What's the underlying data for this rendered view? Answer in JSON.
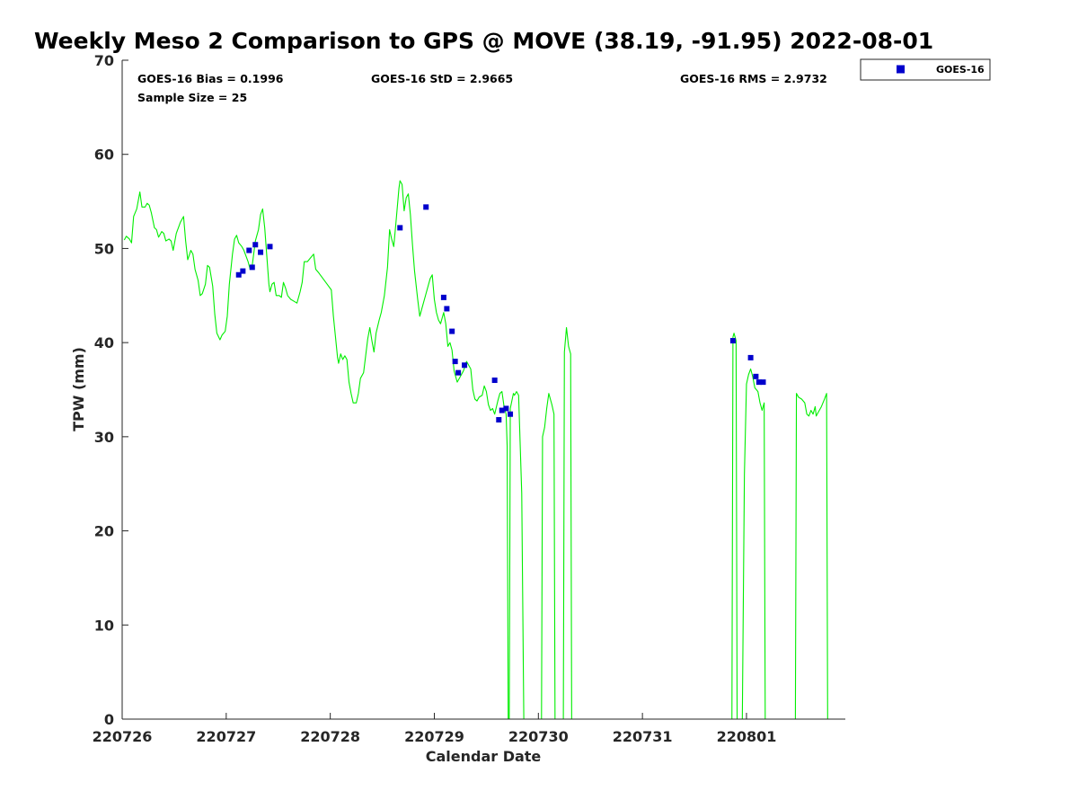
{
  "chart_data": {
    "type": "scatter",
    "title": "Weekly Meso 2 Comparison to GPS @ MOVE (38.19, -91.95) 2022-08-01",
    "xlabel": "Calendar Date",
    "ylabel": "TPW (mm)",
    "xlim": [
      0,
      6.95
    ],
    "ylim": [
      0,
      70
    ],
    "x_ticks": [
      {
        "value": 0,
        "label": "220726"
      },
      {
        "value": 1,
        "label": "220727"
      },
      {
        "value": 2,
        "label": "220728"
      },
      {
        "value": 3,
        "label": "220729"
      },
      {
        "value": 4,
        "label": "220730"
      },
      {
        "value": 5,
        "label": "220731"
      },
      {
        "value": 6,
        "label": "220801"
      }
    ],
    "y_ticks": [
      0,
      10,
      20,
      30,
      40,
      50,
      60,
      70
    ],
    "grid": false,
    "legend": {
      "placement": "top-right-outside",
      "entries": [
        "GOES-16"
      ]
    },
    "stats": {
      "bias": "GOES-16 Bias = 0.1996",
      "std": "GOES-16 StD = 2.9665",
      "rms": "GOES-16 RMS = 2.9732",
      "sample": "Sample Size = 25"
    },
    "colors": {
      "gps": "#00ee00",
      "goes": "#0000cc"
    },
    "series": [
      {
        "name": "",
        "kind": "line",
        "color": "#00ee00",
        "points": [
          [
            0.02,
            50.9
          ],
          [
            0.04,
            51.3
          ],
          [
            0.07,
            51.0
          ],
          [
            0.09,
            50.6
          ],
          [
            0.11,
            53.4
          ],
          [
            0.14,
            54.2
          ],
          [
            0.16,
            55.4
          ],
          [
            0.17,
            56.0
          ],
          [
            0.19,
            54.4
          ],
          [
            0.22,
            54.4
          ],
          [
            0.24,
            54.8
          ],
          [
            0.26,
            54.6
          ],
          [
            0.28,
            53.8
          ],
          [
            0.31,
            52.2
          ],
          [
            0.33,
            52.0
          ],
          [
            0.35,
            51.2
          ],
          [
            0.38,
            51.8
          ],
          [
            0.4,
            51.6
          ],
          [
            0.42,
            50.8
          ],
          [
            0.45,
            51.0
          ],
          [
            0.47,
            50.8
          ],
          [
            0.49,
            49.8
          ],
          [
            0.52,
            51.6
          ],
          [
            0.54,
            52.2
          ],
          [
            0.56,
            52.8
          ],
          [
            0.59,
            53.4
          ],
          [
            0.61,
            50.8
          ],
          [
            0.63,
            48.8
          ],
          [
            0.66,
            49.8
          ],
          [
            0.68,
            49.4
          ],
          [
            0.7,
            47.8
          ],
          [
            0.73,
            46.6
          ],
          [
            0.75,
            45.0
          ],
          [
            0.77,
            45.2
          ],
          [
            0.8,
            46.2
          ],
          [
            0.82,
            48.2
          ],
          [
            0.84,
            48.0
          ],
          [
            0.87,
            46.0
          ],
          [
            0.89,
            43.0
          ],
          [
            0.91,
            41.0
          ],
          [
            0.94,
            40.3
          ],
          [
            0.96,
            40.8
          ],
          [
            0.99,
            41.2
          ],
          [
            1.01,
            42.8
          ],
          [
            1.03,
            46.2
          ],
          [
            1.06,
            49.4
          ],
          [
            1.08,
            51.0
          ],
          [
            1.1,
            51.4
          ],
          [
            1.12,
            50.6
          ],
          [
            1.15,
            50.2
          ],
          [
            1.17,
            49.8
          ],
          [
            1.19,
            49.2
          ],
          [
            1.21,
            48.6
          ],
          [
            1.23,
            47.8
          ],
          [
            1.25,
            48.2
          ],
          [
            1.28,
            50.8
          ],
          [
            1.31,
            52.0
          ],
          [
            1.33,
            53.6
          ],
          [
            1.35,
            54.2
          ],
          [
            1.37,
            52.2
          ],
          [
            1.39,
            49.2
          ],
          [
            1.41,
            46.2
          ],
          [
            1.42,
            45.4
          ],
          [
            1.44,
            46.2
          ],
          [
            1.46,
            46.4
          ],
          [
            1.48,
            45.0
          ],
          [
            1.51,
            45.0
          ],
          [
            1.53,
            44.8
          ],
          [
            1.55,
            46.4
          ],
          [
            1.57,
            45.8
          ],
          [
            1.59,
            45.0
          ],
          [
            1.62,
            44.6
          ],
          [
            1.65,
            44.4
          ],
          [
            1.68,
            44.2
          ],
          [
            1.71,
            45.4
          ],
          [
            1.73,
            46.4
          ],
          [
            1.75,
            48.6
          ],
          [
            1.78,
            48.6
          ],
          [
            1.81,
            49.0
          ],
          [
            1.84,
            49.4
          ],
          [
            1.86,
            47.8
          ],
          [
            1.89,
            47.4
          ],
          [
            1.93,
            46.8
          ],
          [
            1.97,
            46.2
          ],
          [
            2.01,
            45.6
          ],
          [
            2.03,
            42.8
          ],
          [
            2.05,
            40.6
          ],
          [
            2.07,
            38.4
          ],
          [
            2.08,
            37.8
          ],
          [
            2.1,
            38.8
          ],
          [
            2.12,
            38.2
          ],
          [
            2.14,
            38.6
          ],
          [
            2.16,
            38.2
          ],
          [
            2.18,
            35.8
          ],
          [
            2.2,
            34.6
          ],
          [
            2.22,
            33.6
          ],
          [
            2.25,
            33.6
          ],
          [
            2.27,
            34.6
          ],
          [
            2.29,
            36.2
          ],
          [
            2.32,
            36.8
          ],
          [
            2.34,
            38.6
          ],
          [
            2.36,
            40.4
          ],
          [
            2.38,
            41.6
          ],
          [
            2.4,
            40.2
          ],
          [
            2.42,
            39.0
          ],
          [
            2.44,
            41.0
          ],
          [
            2.47,
            42.4
          ],
          [
            2.49,
            43.2
          ],
          [
            2.52,
            45.0
          ],
          [
            2.55,
            48.0
          ],
          [
            2.57,
            52.0
          ],
          [
            2.59,
            51.0
          ],
          [
            2.61,
            50.2
          ],
          [
            2.63,
            52.6
          ],
          [
            2.66,
            56.4
          ],
          [
            2.67,
            57.2
          ],
          [
            2.69,
            56.8
          ],
          [
            2.71,
            54.0
          ],
          [
            2.73,
            55.4
          ],
          [
            2.75,
            55.8
          ],
          [
            2.77,
            53.6
          ],
          [
            2.79,
            50.4
          ],
          [
            2.81,
            47.6
          ],
          [
            2.84,
            44.6
          ],
          [
            2.86,
            42.8
          ],
          [
            2.88,
            43.6
          ],
          [
            2.91,
            44.8
          ],
          [
            2.93,
            45.6
          ],
          [
            2.96,
            46.8
          ],
          [
            2.98,
            47.2
          ],
          [
            3.0,
            44.6
          ],
          [
            3.02,
            43.2
          ],
          [
            3.04,
            42.4
          ],
          [
            3.06,
            42.0
          ],
          [
            3.09,
            43.2
          ],
          [
            3.11,
            42.0
          ],
          [
            3.13,
            39.6
          ],
          [
            3.15,
            40.0
          ],
          [
            3.17,
            39.2
          ],
          [
            3.19,
            37.0
          ],
          [
            3.22,
            35.8
          ],
          [
            3.25,
            36.4
          ],
          [
            3.28,
            37.0
          ],
          [
            3.31,
            38.0
          ],
          [
            3.33,
            37.6
          ],
          [
            3.35,
            37.2
          ],
          [
            3.37,
            35.0
          ],
          [
            3.39,
            34.0
          ],
          [
            3.41,
            33.8
          ],
          [
            3.43,
            34.2
          ],
          [
            3.46,
            34.4
          ],
          [
            3.48,
            35.4
          ],
          [
            3.5,
            34.8
          ],
          [
            3.52,
            33.4
          ],
          [
            3.54,
            32.8
          ],
          [
            3.56,
            33.0
          ],
          [
            3.58,
            32.4
          ],
          [
            3.61,
            33.8
          ],
          [
            3.63,
            34.6
          ],
          [
            3.65,
            34.8
          ],
          [
            3.67,
            33.2
          ],
          [
            3.69,
            32.4
          ],
          [
            3.7,
            29.0
          ],
          [
            3.71,
            0.0
          ],
          [
            3.72,
            0.0
          ],
          [
            3.73,
            33.0
          ],
          [
            3.76,
            34.6
          ],
          [
            3.77,
            34.4
          ],
          [
            3.79,
            34.8
          ],
          [
            3.81,
            34.4
          ],
          [
            3.84,
            24.0
          ],
          [
            3.86,
            0.0
          ],
          [
            3.87,
            0.0
          ],
          [
            4.03,
            0.0
          ],
          [
            4.04,
            30.0
          ],
          [
            4.06,
            31.0
          ],
          [
            4.08,
            33.0
          ],
          [
            4.1,
            34.6
          ],
          [
            4.13,
            33.4
          ],
          [
            4.15,
            32.4
          ],
          [
            4.16,
            0.0
          ],
          [
            4.24,
            0.0
          ],
          [
            4.25,
            39.0
          ],
          [
            4.27,
            41.6
          ],
          [
            4.29,
            39.6
          ],
          [
            4.31,
            38.8
          ],
          [
            4.32,
            0.0
          ],
          [
            5.86,
            0.0
          ],
          [
            5.87,
            40.6
          ],
          [
            5.88,
            41.0
          ],
          [
            5.9,
            40.2
          ],
          [
            5.91,
            0.0
          ],
          [
            5.96,
            0.0
          ],
          [
            5.98,
            26.0
          ],
          [
            6.0,
            35.6
          ],
          [
            6.02,
            36.6
          ],
          [
            6.04,
            37.2
          ],
          [
            6.06,
            36.4
          ],
          [
            6.08,
            35.2
          ],
          [
            6.11,
            34.8
          ],
          [
            6.13,
            33.6
          ],
          [
            6.15,
            32.8
          ],
          [
            6.17,
            33.6
          ],
          [
            6.18,
            0.0
          ],
          [
            6.47,
            0.0
          ],
          [
            6.48,
            34.6
          ],
          [
            6.5,
            34.2
          ],
          [
            6.53,
            34.0
          ],
          [
            6.56,
            33.6
          ],
          [
            6.58,
            32.4
          ],
          [
            6.6,
            32.2
          ],
          [
            6.62,
            32.8
          ],
          [
            6.64,
            32.4
          ],
          [
            6.66,
            33.2
          ],
          [
            6.67,
            32.2
          ],
          [
            6.69,
            32.6
          ],
          [
            6.72,
            33.2
          ],
          [
            6.75,
            34.0
          ],
          [
            6.77,
            34.6
          ],
          [
            6.78,
            0.0
          ]
        ]
      },
      {
        "name": "GOES-16",
        "kind": "scatter",
        "color": "#0000cc",
        "points": [
          [
            1.12,
            47.2
          ],
          [
            1.16,
            47.6
          ],
          [
            1.22,
            49.8
          ],
          [
            1.25,
            48.0
          ],
          [
            1.28,
            50.4
          ],
          [
            1.33,
            49.6
          ],
          [
            1.42,
            50.2
          ],
          [
            2.67,
            52.2
          ],
          [
            2.92,
            54.4
          ],
          [
            3.09,
            44.8
          ],
          [
            3.12,
            43.6
          ],
          [
            3.17,
            41.2
          ],
          [
            3.2,
            38.0
          ],
          [
            3.23,
            36.8
          ],
          [
            3.29,
            37.6
          ],
          [
            3.58,
            36.0
          ],
          [
            3.62,
            31.8
          ],
          [
            3.65,
            32.8
          ],
          [
            3.69,
            33.0
          ],
          [
            3.73,
            32.4
          ],
          [
            5.87,
            40.2
          ],
          [
            6.04,
            38.4
          ],
          [
            6.09,
            36.4
          ],
          [
            6.12,
            35.8
          ],
          [
            6.16,
            35.8
          ]
        ]
      }
    ]
  }
}
